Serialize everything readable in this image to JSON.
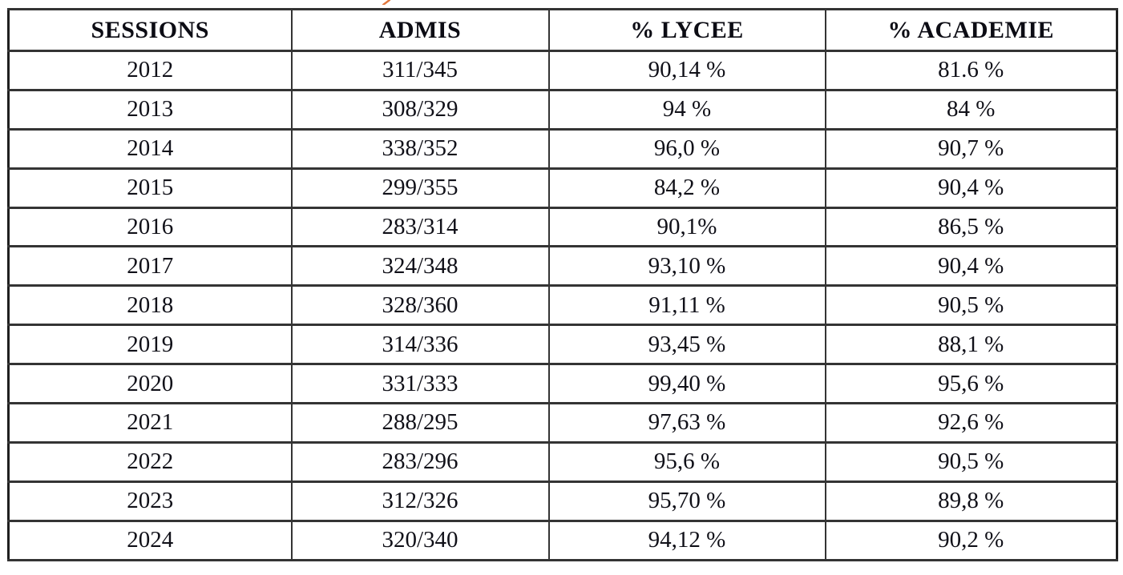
{
  "decoration": {
    "top_cut_mark": {
      "description": "bottom tip of an orange character cut off at the top edge of the page",
      "color": "#e0753a"
    }
  },
  "table": {
    "columns": [
      "SESSIONS",
      "ADMIS",
      "% LYCEE",
      "% ACADEMIE"
    ],
    "rows": [
      [
        "2012",
        "311/345",
        "90,14 %",
        "81.6 %"
      ],
      [
        "2013",
        "308/329",
        "94 %",
        "84 %"
      ],
      [
        "2014",
        "338/352",
        "96,0 %",
        "90,7 %"
      ],
      [
        "2015",
        "299/355",
        "84,2 %",
        "90,4 %"
      ],
      [
        "2016",
        "283/314",
        "90,1%",
        "86,5 %"
      ],
      [
        "2017",
        "324/348",
        "93,10 %",
        "90,4 %"
      ],
      [
        "2018",
        "328/360",
        "91,11 %",
        "90,5 %"
      ],
      [
        "2019",
        "314/336",
        "93,45 %",
        "88,1 %"
      ],
      [
        "2020",
        "331/333",
        "99,40 %",
        "95,6 %"
      ],
      [
        "2021",
        "288/295",
        "97,63 %",
        "92,6 %"
      ],
      [
        "2022",
        "283/296",
        "95,6 %",
        "90,5 %"
      ],
      [
        "2023",
        "312/326",
        "95,70 %",
        "89,8 %"
      ],
      [
        "2024",
        "320/340",
        "94,12 %",
        "90,2 %"
      ]
    ],
    "border_color": "#343434",
    "text_color": "#101018",
    "background_color": "#ffffff"
  }
}
